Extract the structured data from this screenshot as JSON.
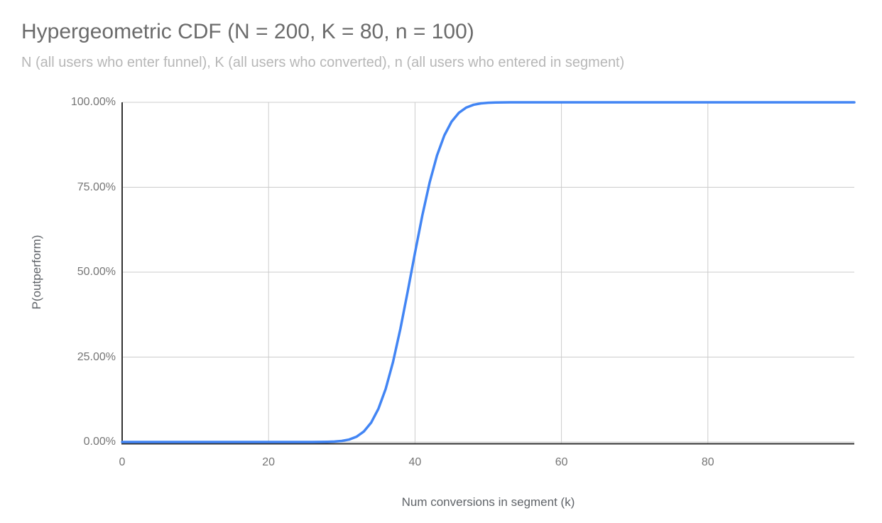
{
  "chart_data": {
    "type": "line",
    "title": "Hypergeometric CDF (N = 200, K = 80, n = 100)",
    "subtitle": "N (all users who enter funnel), K (all users who converted), n (all users who entered in segment)",
    "xlabel": "Num conversions in segment (k)",
    "ylabel": "P(outperform)",
    "xlim": [
      0,
      100
    ],
    "ylim": [
      0,
      1
    ],
    "xticks": [
      0,
      20,
      40,
      60,
      80
    ],
    "xtick_labels": {
      "0": "0",
      "1": "20",
      "2": "40",
      "3": "60",
      "4": "80"
    },
    "yticks": [
      0,
      0.25,
      0.5,
      0.75,
      1
    ],
    "ytick_labels": {
      "0": "0.00%",
      "1": "25.00%",
      "2": "50.00%",
      "3": "75.00%",
      "4": "100.00%"
    },
    "grid": true,
    "legend": "none",
    "grid_color": "#cccccc",
    "axis_color": "#333333",
    "series": [
      {
        "name": "P(outperform)",
        "color": "#4285f4",
        "x": [
          0,
          1,
          2,
          3,
          4,
          5,
          6,
          7,
          8,
          9,
          10,
          11,
          12,
          13,
          14,
          15,
          16,
          17,
          18,
          19,
          20,
          21,
          22,
          23,
          24,
          25,
          26,
          27,
          28,
          29,
          30,
          31,
          32,
          33,
          34,
          35,
          36,
          37,
          38,
          39,
          40,
          41,
          42,
          43,
          44,
          45,
          46,
          47,
          48,
          49,
          50,
          51,
          52,
          53,
          54,
          55,
          56,
          57,
          58,
          59,
          60,
          61,
          62,
          63,
          64,
          65,
          66,
          67,
          68,
          69,
          70,
          71,
          72,
          73,
          74,
          75,
          76,
          77,
          78,
          79,
          80,
          81,
          82,
          83,
          84,
          85,
          86,
          87,
          88,
          89,
          90,
          91,
          92,
          93,
          94,
          95,
          96,
          97,
          98,
          99,
          100
        ],
        "y": [
          0,
          0,
          0,
          0,
          0,
          0,
          0,
          0,
          0,
          0,
          0,
          0,
          0,
          0,
          0,
          0,
          0,
          0,
          0,
          0,
          0,
          0,
          0,
          0,
          0,
          2e-05,
          5e-05,
          0.00016,
          0.0005,
          0.0012,
          0.0031,
          0.0072,
          0.0154,
          0.0307,
          0.0567,
          0.0977,
          0.1567,
          0.2358,
          0.3329,
          0.4428,
          0.5572,
          0.6671,
          0.7642,
          0.8433,
          0.9023,
          0.9433,
          0.9693,
          0.9846,
          0.9928,
          0.9969,
          0.9988,
          0.9995,
          0.9998,
          0.9999,
          1,
          1,
          1,
          1,
          1,
          1,
          1,
          1,
          1,
          1,
          1,
          1,
          1,
          1,
          1,
          1,
          1,
          1,
          1,
          1,
          1,
          1,
          1,
          1,
          1,
          1,
          1,
          1,
          1,
          1,
          1,
          1,
          1,
          1,
          1,
          1,
          1,
          1,
          1,
          1,
          1,
          1,
          1,
          1,
          1,
          1,
          1
        ]
      }
    ]
  }
}
